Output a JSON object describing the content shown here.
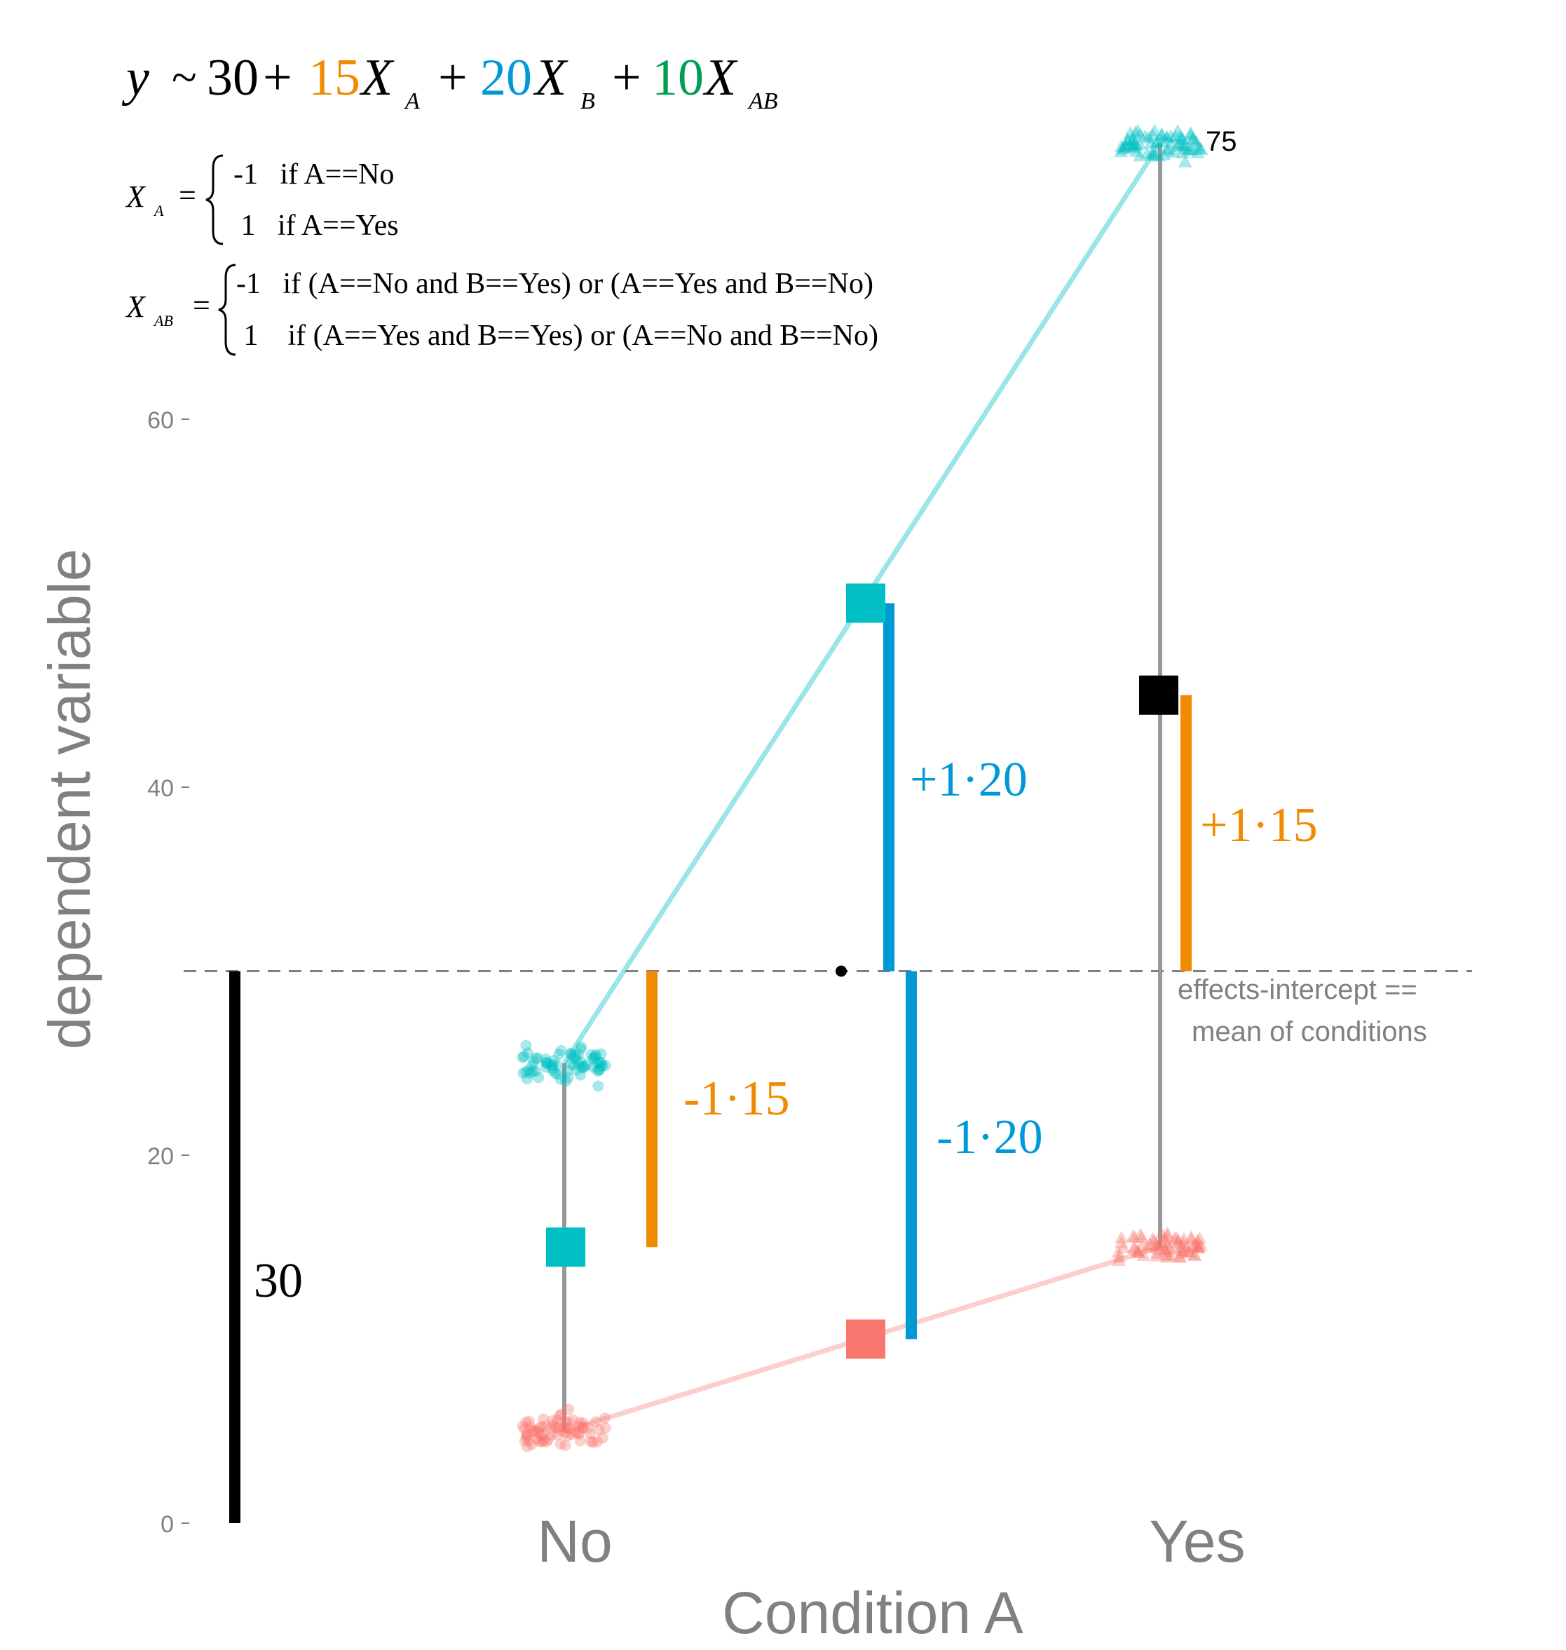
{
  "chart_data": {
    "type": "scatter",
    "xlabel": "Condition A",
    "ylabel": "dependent variable",
    "categories": [
      "No",
      "Yes"
    ],
    "yticks": [
      0,
      20,
      40,
      60
    ],
    "ylim": [
      0,
      75
    ],
    "grid": false,
    "colors": {
      "B_no": "#f8766d",
      "B_yes": "#00bfc4",
      "effect_A": "#f08a00",
      "effect_B": "#0099d6",
      "effect_AB": "#009e50",
      "intercept": "#000000",
      "axis_text": "#808080"
    },
    "series": [
      {
        "group": "B_no",
        "color": "#f8766d",
        "points": [
          {
            "x": "No",
            "y": 5
          },
          {
            "x": "Yes",
            "y": 15
          }
        ],
        "marker": [
          "circle",
          "triangle"
        ]
      },
      {
        "group": "B_yes",
        "color": "#00bfc4",
        "points": [
          {
            "x": "No",
            "y": 25
          },
          {
            "x": "Yes",
            "y": 75
          }
        ],
        "marker": [
          "circle",
          "triangle"
        ]
      }
    ],
    "marginal_means": [
      {
        "label": "A=No mean",
        "x": "No",
        "y": 15,
        "color": "#00bfc4"
      },
      {
        "label": "A=Yes mean",
        "x": "Yes",
        "y": 45,
        "color": "#000000"
      },
      {
        "label": "B=Yes mean",
        "x": "middle",
        "y": 50,
        "color": "#00bfc4"
      },
      {
        "label": "B=No mean",
        "x": "middle",
        "y": 10,
        "color": "#f8766d"
      }
    ],
    "intercept": 30,
    "effect_bars": [
      {
        "label": "30",
        "from": 0,
        "to": 30,
        "color": "#000000"
      },
      {
        "label": "-1·15",
        "from": 15,
        "to": 30,
        "color": "#f08a00"
      },
      {
        "label": "+1·15",
        "from": 30,
        "to": 45,
        "color": "#f08a00"
      },
      {
        "label": "+1·20",
        "from": 30,
        "to": 50,
        "color": "#0099d6"
      },
      {
        "label": "-1·20",
        "from": 10,
        "to": 30,
        "color": "#0099d6"
      }
    ],
    "annotations": {
      "top_value": "75",
      "intercept_note": [
        "effects-intercept ==",
        "mean of conditions"
      ]
    },
    "formula": {
      "y": "y",
      "tilde": "~",
      "b0": "30",
      "plus": "+",
      "b1": "15",
      "b2": "20",
      "b3": "10",
      "X": "X",
      "subA": "A",
      "subB": "B",
      "subAB": "AB",
      "eq": "=",
      "xa_cases": [
        "-1   if A==No",
        " 1   if A==Yes"
      ],
      "xab_cases": [
        "-1   if (A==No and B==Yes) or (A==Yes and B==No)",
        " 1    if (A==Yes and B==Yes) or (A==No and B==No)"
      ]
    }
  }
}
